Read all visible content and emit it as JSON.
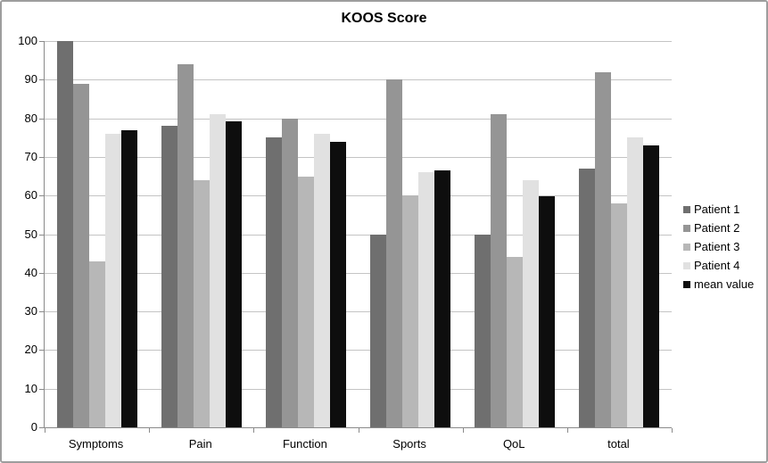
{
  "chart_data": {
    "type": "bar",
    "title": "KOOS Score",
    "categories": [
      "Symptoms",
      "Pain",
      "Function",
      "Sports",
      "QoL",
      "total"
    ],
    "series": [
      {
        "name": "Patient 1",
        "color": "#6f6f6f",
        "values": [
          100,
          78,
          75,
          50,
          50,
          67
        ]
      },
      {
        "name": "Patient 2",
        "color": "#959595",
        "values": [
          89,
          94,
          80,
          90,
          81,
          92
        ]
      },
      {
        "name": "Patient 3",
        "color": "#b7b7b7",
        "values": [
          43,
          64,
          65,
          60,
          44,
          58
        ]
      },
      {
        "name": "Patient 4",
        "color": "#e1e1e1",
        "values": [
          76,
          81,
          76,
          66,
          64,
          75
        ]
      },
      {
        "name": "mean value",
        "color": "#0e0e0e",
        "values": [
          77,
          79.25,
          74,
          66.5,
          59.75,
          73
        ]
      }
    ],
    "xlabel": "",
    "ylabel": "",
    "ylim": [
      0,
      100
    ],
    "ytick_interval": 10,
    "y_tick_labels": [
      "0",
      "10",
      "20",
      "30",
      "40",
      "50",
      "60",
      "70",
      "80",
      "90",
      "100"
    ],
    "grid": true,
    "gridline_color": "#c4c4c4",
    "axis_color": "#8a8a8a",
    "legend_position": "right",
    "background_color": "#ffffff",
    "border_color": "#9d9d9d"
  }
}
